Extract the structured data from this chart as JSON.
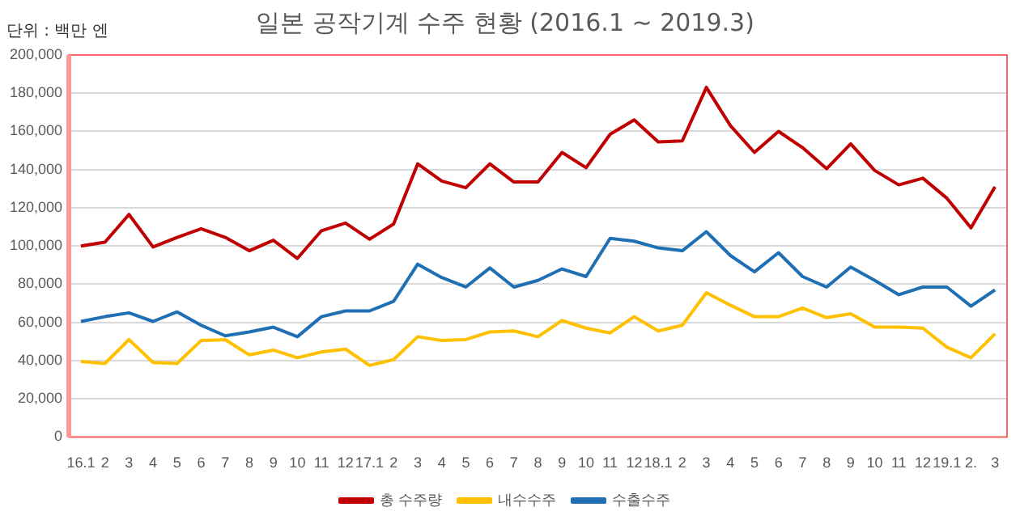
{
  "chart_data": {
    "type": "line",
    "title": "일본 공작기계 수주 현황 (2016.1 ~ 2019.3)",
    "annotations": [
      "단위 : 백만 엔"
    ],
    "categories": [
      "16.1",
      "2",
      "3",
      "4",
      "5",
      "6",
      "7",
      "8",
      "9",
      "10",
      "11",
      "12",
      "17.1",
      "2",
      "3",
      "4",
      "5",
      "6",
      "7",
      "8",
      "9",
      "10",
      "11",
      "12",
      "18.1",
      "2",
      "3",
      "4",
      "5",
      "6",
      "7",
      "8",
      "9",
      "10",
      "11",
      "12",
      "19.1",
      "2.",
      "3"
    ],
    "series": [
      {
        "name": "총 수주량",
        "color": "#c00000",
        "values": [
          100000,
          102000,
          116500,
          99500,
          104500,
          109000,
          104500,
          97500,
          103000,
          93500,
          108000,
          112000,
          103500,
          111500,
          143000,
          134000,
          130500,
          143000,
          133500,
          133500,
          149000,
          141000,
          158500,
          166000,
          154500,
          155000,
          183000,
          163000,
          149000,
          160000,
          151500,
          140500,
          153500,
          139500,
          132000,
          135500,
          125000,
          109500,
          131000
        ]
      },
      {
        "name": "내수수주",
        "color": "#ffc000",
        "values": [
          39500,
          38500,
          51000,
          39000,
          38500,
          50500,
          51000,
          43000,
          45500,
          41500,
          44500,
          46000,
          37500,
          40500,
          52500,
          50500,
          51000,
          55000,
          55500,
          52500,
          61000,
          57000,
          54500,
          63000,
          55500,
          58500,
          75500,
          69000,
          63000,
          63000,
          67500,
          62500,
          64500,
          57500,
          57500,
          57000,
          47000,
          41500,
          54000
        ]
      },
      {
        "name": "수출수주",
        "color": "#1f6fb5",
        "values": [
          60500,
          63000,
          65000,
          60500,
          65500,
          58500,
          53000,
          55000,
          57500,
          52500,
          63000,
          66000,
          66000,
          71000,
          90500,
          83500,
          78500,
          88500,
          78500,
          82000,
          88000,
          84000,
          104000,
          102500,
          99000,
          97500,
          107500,
          95000,
          86500,
          96500,
          84000,
          78500,
          89000,
          82000,
          74500,
          78500,
          78500,
          68500,
          77000
        ]
      }
    ],
    "ylim": [
      0,
      200000
    ],
    "yticks": [
      0,
      {
        "value": 20000,
        "label": "20,000"
      },
      {
        "value": 40000,
        "label": "40,000"
      },
      {
        "value": 60000,
        "label": "60,000"
      },
      {
        "value": 80000,
        "label": "80,000"
      },
      {
        "value": 100000,
        "label": "100,000"
      },
      {
        "value": 120000,
        "label": "120,000"
      },
      {
        "value": 140000,
        "label": "140,000"
      },
      {
        "value": 160000,
        "label": "160,000"
      },
      {
        "value": 180000,
        "label": "180,000"
      },
      {
        "value": 200000,
        "label": "200,000"
      }
    ],
    "grid": "y",
    "legend": "bottom",
    "marker": "none",
    "line_style": "solid"
  }
}
